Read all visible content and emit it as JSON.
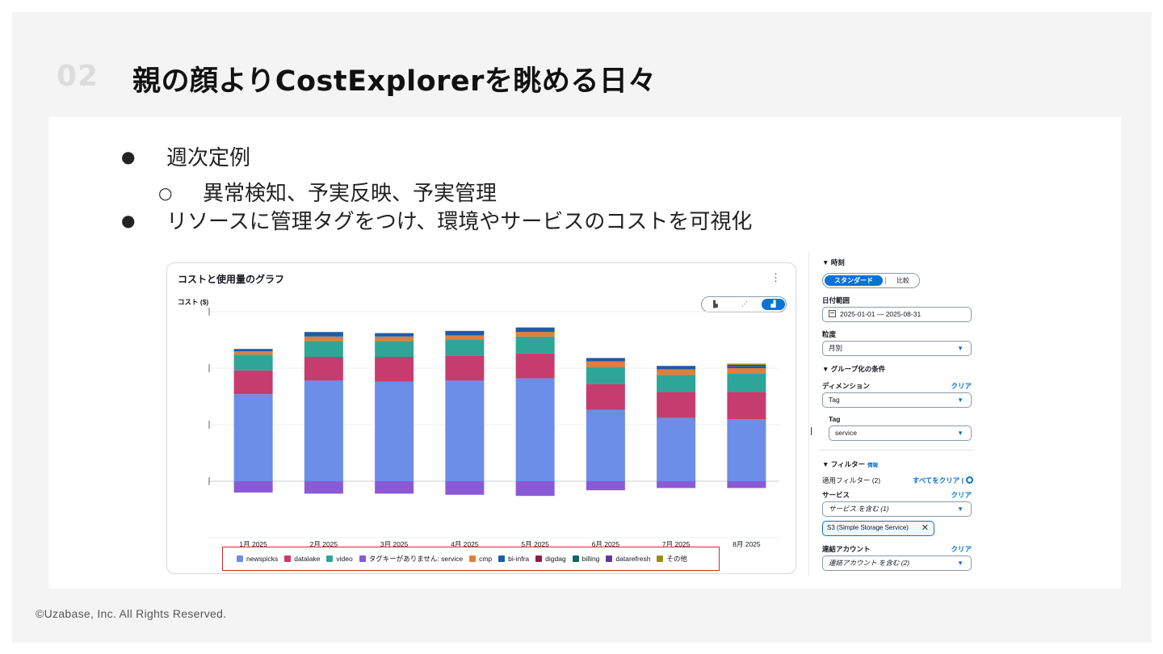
{
  "slide": {
    "number": "02",
    "title": "親の顔よりCostExplorerを眺める日々",
    "footer": "©Uzabase, Inc. All Rights Reserved."
  },
  "bullets": {
    "b1": "週次定例",
    "b1_sub": "異常検知、予実反映、予実管理",
    "b2": "リソースに管理タグをつけ、環境やサービスのコストを可視化",
    "bullet_glyph": "●",
    "sub_glyph": "○"
  },
  "graph": {
    "title": "コストと使用量のグラフ",
    "kebab": "⋮",
    "ylabel": "コスト ($)",
    "toggle": {
      "bar": "▐▖",
      "line": "⋰",
      "stack": "▟"
    }
  },
  "chart_data": {
    "type": "bar",
    "stacked": true,
    "title": "コストと使用量のグラフ",
    "ylabel": "コスト ($)",
    "xlabel": "",
    "categories": [
      "1月 2025",
      "2月 2025",
      "3月 2025",
      "4月 2025",
      "5月 2025",
      "6月 2025",
      "7月 2025",
      "8月 2025"
    ],
    "series": [
      {
        "name": "newspicks",
        "color": "#6c8ee8",
        "values": [
          77,
          89,
          88,
          89,
          91,
          63,
          56,
          55
        ]
      },
      {
        "name": "datalake",
        "color": "#c73c6e",
        "values": [
          21,
          21,
          22,
          22,
          22,
          23,
          23,
          24
        ]
      },
      {
        "name": "video",
        "color": "#2ea597",
        "values": [
          14,
          14,
          14,
          14,
          15,
          15,
          15,
          16
        ]
      },
      {
        "name": "タグキーがありません: service",
        "color": "#8a5ad6",
        "values": [
          -10,
          -11,
          -11,
          -12,
          -13,
          -8,
          -6,
          -6
        ]
      },
      {
        "name": "cmp",
        "color": "#e07f3a",
        "values": [
          3,
          4,
          4,
          4,
          4,
          5,
          5,
          5
        ]
      },
      {
        "name": "bi-infra",
        "color": "#1f5aa8",
        "values": [
          2,
          4,
          3,
          4,
          4,
          3,
          3,
          2
        ]
      },
      {
        "name": "digdag",
        "color": "#8b1d4e",
        "values": [
          0,
          0,
          0,
          0,
          0,
          0,
          0,
          1
        ]
      },
      {
        "name": "billing",
        "color": "#0b6b5b",
        "values": [
          0,
          0,
          0,
          0,
          0,
          0,
          0,
          0
        ]
      },
      {
        "name": "datarefresh",
        "color": "#5b3aa0",
        "values": [
          0,
          0,
          0,
          0,
          0,
          0,
          0,
          0
        ]
      },
      {
        "name": "その他",
        "color": "#9b8b19",
        "values": [
          0,
          0,
          0,
          0,
          0,
          0,
          0,
          1
        ]
      }
    ],
    "ylim": [
      -50,
      150
    ],
    "grid": true,
    "legend": "bottom"
  },
  "side": {
    "time_section": "▼ 時刻",
    "seg_standard": "スタンダード",
    "seg_compare": "比較",
    "date_range_label": "日付範囲",
    "date_range_value": "2025-01-01 — 2025-08-31",
    "granularity_label": "粒度",
    "granularity_value": "月別",
    "group_section": "▼ グループ化の条件",
    "dimension_label": "ディメンション",
    "clear": "クリア",
    "dimension_value": "Tag",
    "tag_label": "Tag",
    "tag_value": "service",
    "filter_section": "▼ フィルター",
    "info": "情報",
    "applied_filters": "適用フィルター (2)",
    "clear_all": "すべてをクリア |",
    "service_label": "サービス",
    "service_value": "サービス を含む (1)",
    "service_token": "S3 (Simple Storage Service)",
    "token_x": "✕",
    "linked_label": "連結アカウント",
    "linked_value": "連結アカウント を含む (2)",
    "caret": "▼"
  }
}
